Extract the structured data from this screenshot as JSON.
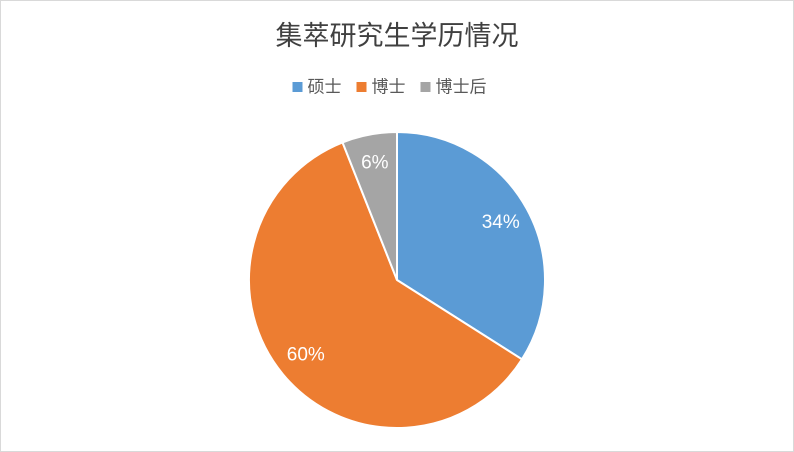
{
  "chart_data": {
    "type": "pie",
    "title": "集萃研究生学历情况",
    "categories": [
      "硕士",
      "博士",
      "博士后"
    ],
    "values": [
      34,
      60,
      6
    ],
    "value_labels": [
      "34%",
      "60%",
      "6%"
    ],
    "colors": [
      "#5b9bd5",
      "#ed7d31",
      "#a5a5a5"
    ],
    "legend": "top"
  }
}
